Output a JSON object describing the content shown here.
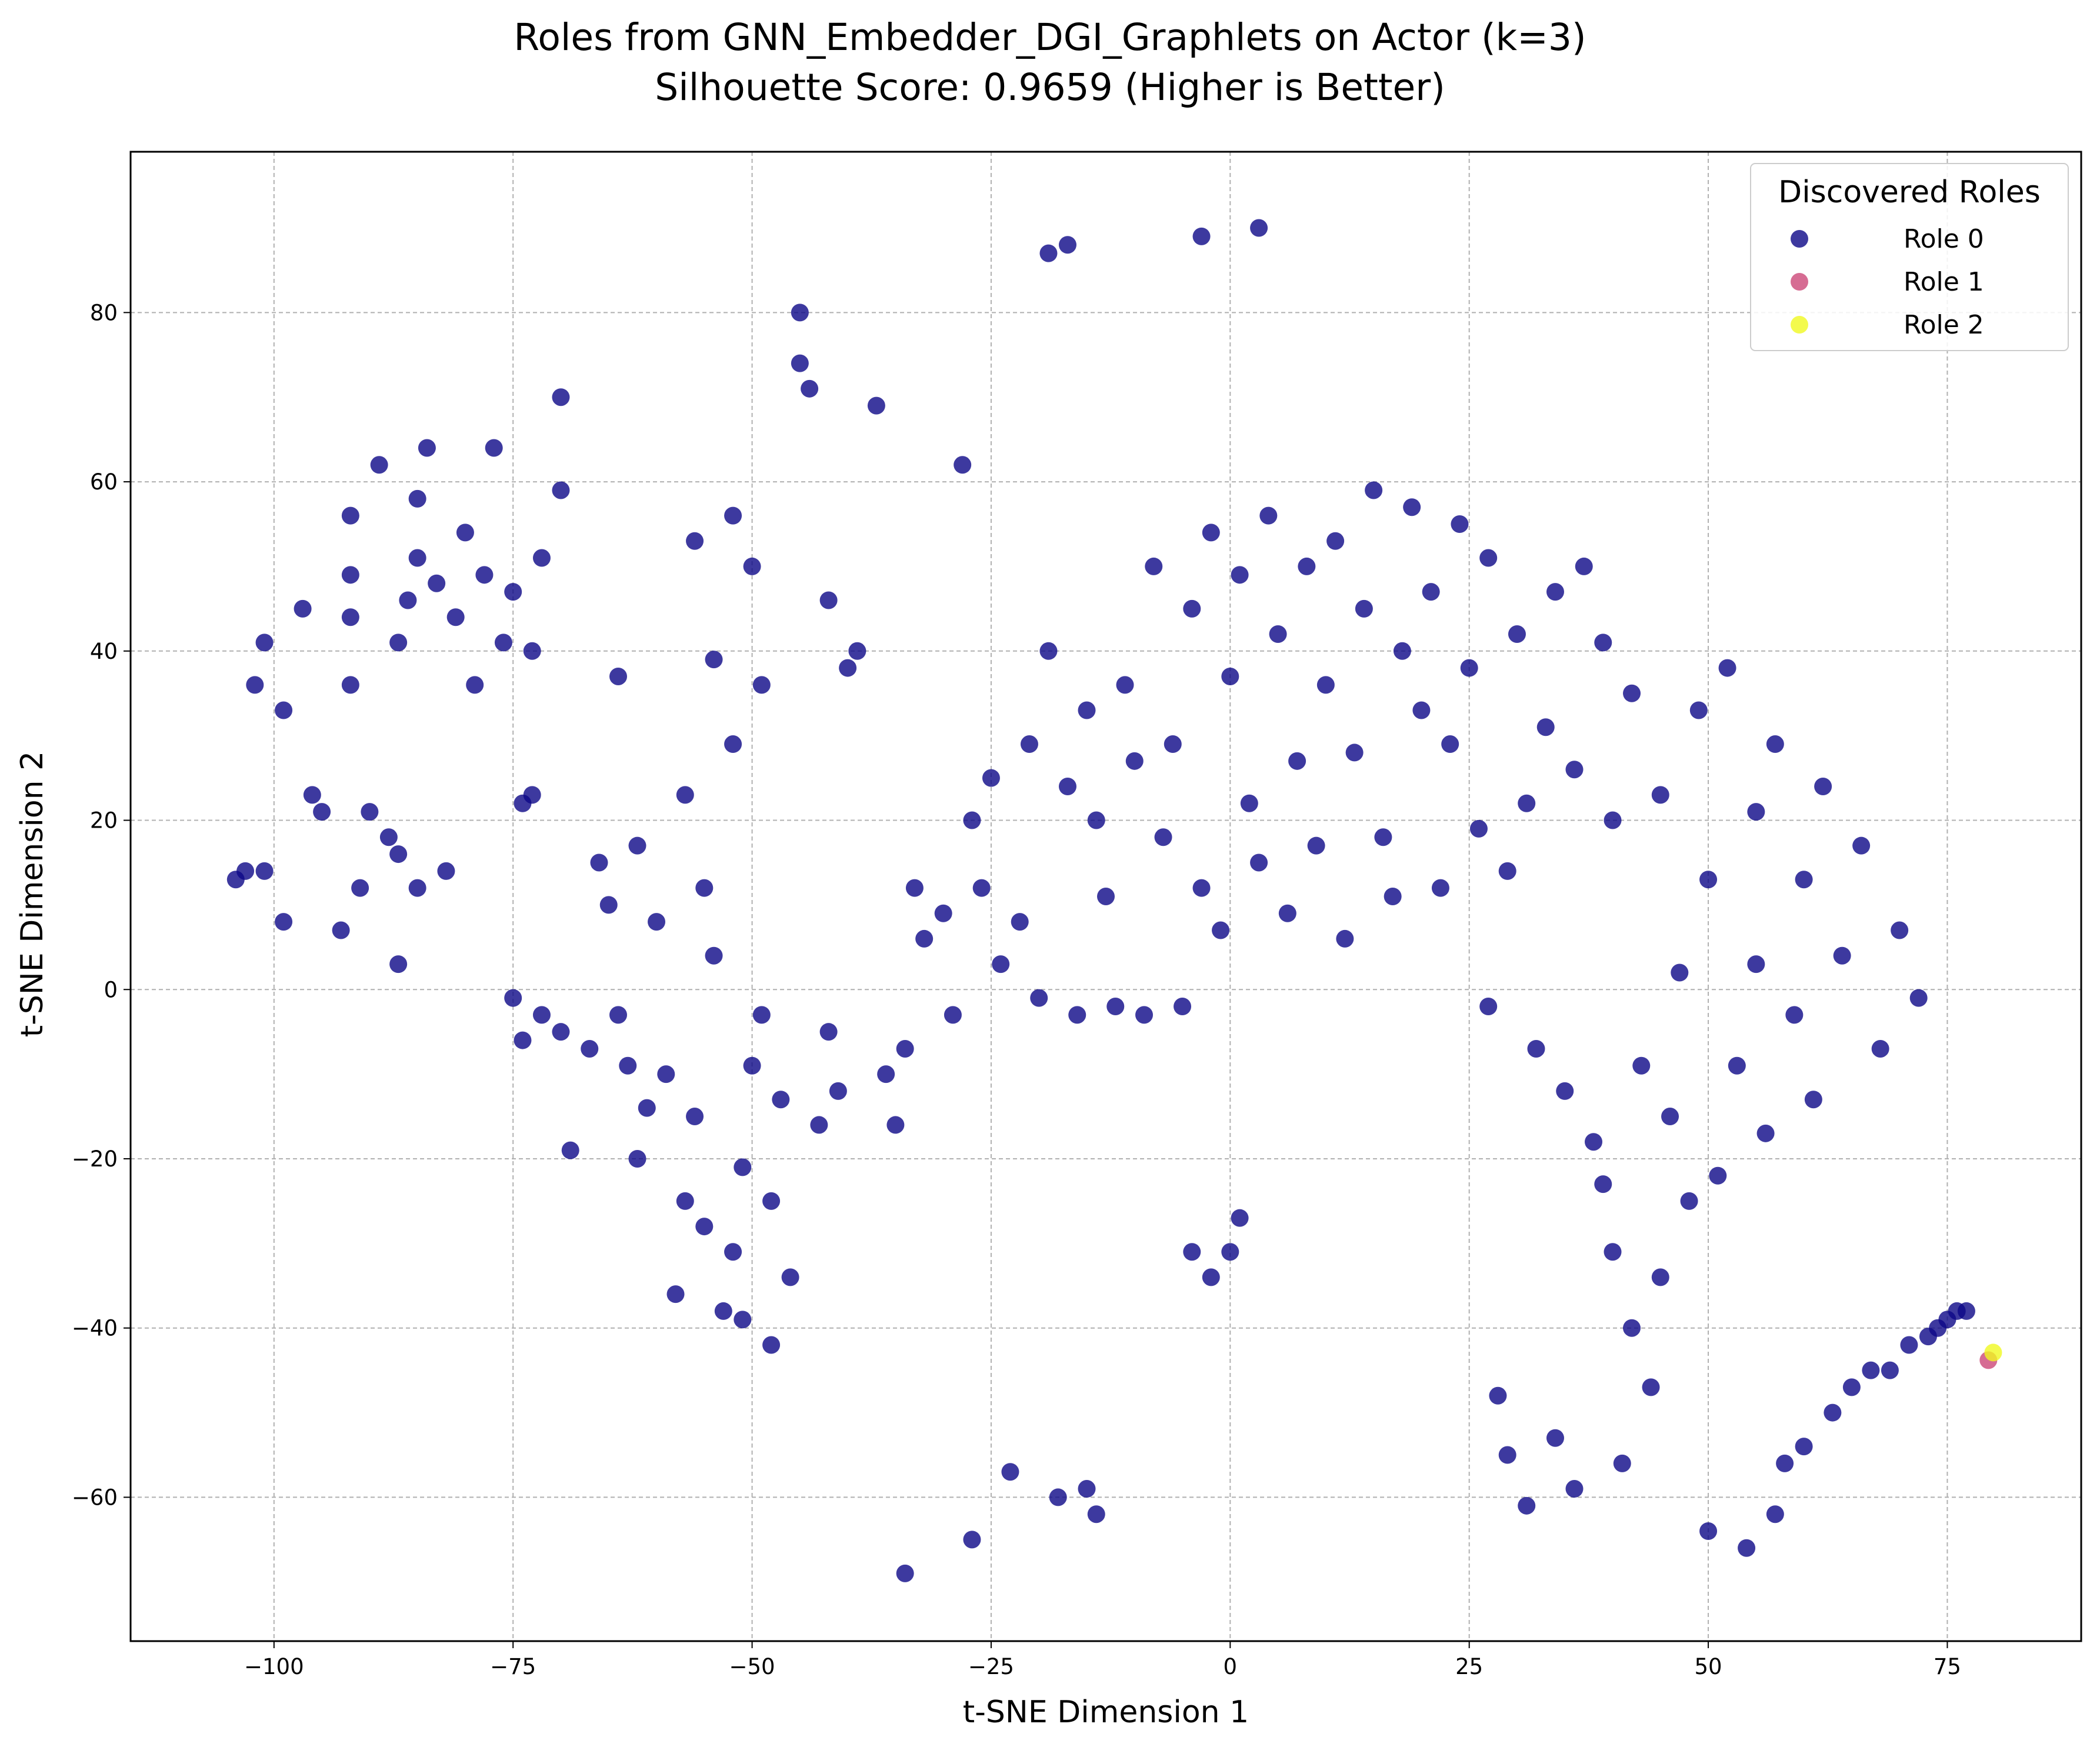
{
  "chart_data": {
    "type": "scatter",
    "title": "Roles from GNN_Embedder_DGI_Graphlets on Actor (k=3)",
    "subtitle": "Silhouette Score: 0.9659 (Higher is Better)",
    "xlabel": "t-SNE Dimension 1",
    "ylabel": "t-SNE Dimension 2",
    "xlim": [
      -115,
      89
    ],
    "ylim": [
      -77,
      99
    ],
    "xticks": [
      -100,
      -75,
      -50,
      -25,
      0,
      25,
      50,
      75
    ],
    "yticks": [
      -60,
      -40,
      -20,
      0,
      20,
      40,
      60,
      80
    ],
    "xtick_labels": [
      "−100",
      "−75",
      "−50",
      "−25",
      "0",
      "25",
      "50",
      "75"
    ],
    "ytick_labels": [
      "−60",
      "−40",
      "−20",
      "0",
      "20",
      "40",
      "60",
      "80"
    ],
    "grid": true,
    "legend": {
      "title": "Discovered Roles",
      "position": "top-right",
      "entries": [
        "Role 0",
        "Role 1",
        "Role 2"
      ]
    },
    "series": [
      {
        "name": "Role 0",
        "color": "#0d0887",
        "points": [
          [
            -104,
            13
          ],
          [
            -103,
            14
          ],
          [
            -101,
            14
          ],
          [
            -102,
            36
          ],
          [
            -101,
            41
          ],
          [
            -99,
            33
          ],
          [
            -99,
            8
          ],
          [
            -97,
            45
          ],
          [
            -96,
            23
          ],
          [
            -95,
            21
          ],
          [
            -93,
            7
          ],
          [
            -92,
            36
          ],
          [
            -92,
            44
          ],
          [
            -92,
            49
          ],
          [
            -92,
            56
          ],
          [
            -91,
            12
          ],
          [
            -90,
            21
          ],
          [
            -89,
            62
          ],
          [
            -88,
            18
          ],
          [
            -87,
            16
          ],
          [
            -87,
            3
          ],
          [
            -87,
            41
          ],
          [
            -86,
            46
          ],
          [
            -85,
            12
          ],
          [
            -85,
            51
          ],
          [
            -85,
            58
          ],
          [
            -84,
            64
          ],
          [
            -83,
            48
          ],
          [
            -82,
            14
          ],
          [
            -81,
            44
          ],
          [
            -80,
            54
          ],
          [
            -79,
            36
          ],
          [
            -78,
            49
          ],
          [
            -77,
            64
          ],
          [
            -76,
            41
          ],
          [
            -75,
            47
          ],
          [
            -75,
            -1
          ],
          [
            -74,
            22
          ],
          [
            -74,
            -6
          ],
          [
            -73,
            40
          ],
          [
            -73,
            23
          ],
          [
            -72,
            51
          ],
          [
            -72,
            -3
          ],
          [
            -70,
            59
          ],
          [
            -70,
            70
          ],
          [
            -70,
            -5
          ],
          [
            -69,
            -19
          ],
          [
            -67,
            -7
          ],
          [
            -66,
            15
          ],
          [
            -65,
            10
          ],
          [
            -64,
            37
          ],
          [
            -64,
            -3
          ],
          [
            -63,
            -9
          ],
          [
            -62,
            17
          ],
          [
            -62,
            -20
          ],
          [
            -61,
            -14
          ],
          [
            -60,
            8
          ],
          [
            -59,
            -10
          ],
          [
            -58,
            -36
          ],
          [
            -57,
            23
          ],
          [
            -57,
            -25
          ],
          [
            -56,
            53
          ],
          [
            -56,
            -15
          ],
          [
            -55,
            12
          ],
          [
            -55,
            -28
          ],
          [
            -54,
            4
          ],
          [
            -54,
            39
          ],
          [
            -53,
            -38
          ],
          [
            -52,
            -31
          ],
          [
            -52,
            56
          ],
          [
            -52,
            29
          ],
          [
            -51,
            -21
          ],
          [
            -51,
            -39
          ],
          [
            -50,
            50
          ],
          [
            -50,
            -9
          ],
          [
            -49,
            36
          ],
          [
            -49,
            -3
          ],
          [
            -48,
            -42
          ],
          [
            -48,
            -25
          ],
          [
            -47,
            -13
          ],
          [
            -46,
            -34
          ],
          [
            -45,
            74
          ],
          [
            -45,
            80
          ],
          [
            -44,
            71
          ],
          [
            -43,
            -16
          ],
          [
            -42,
            46
          ],
          [
            -42,
            -5
          ],
          [
            -41,
            -12
          ],
          [
            -40,
            38
          ],
          [
            -39,
            40
          ],
          [
            -37,
            69
          ],
          [
            -36,
            -10
          ],
          [
            -35,
            -16
          ],
          [
            -34,
            -69
          ],
          [
            -34,
            -7
          ],
          [
            -33,
            12
          ],
          [
            -32,
            6
          ],
          [
            -30,
            9
          ],
          [
            -29,
            -3
          ],
          [
            -28,
            62
          ],
          [
            -27,
            -65
          ],
          [
            -27,
            20
          ],
          [
            -26,
            12
          ],
          [
            -25,
            25
          ],
          [
            -24,
            3
          ],
          [
            -23,
            -57
          ],
          [
            -22,
            8
          ],
          [
            -21,
            29
          ],
          [
            -20,
            -1
          ],
          [
            -19,
            40
          ],
          [
            -19,
            87
          ],
          [
            -18,
            -60
          ],
          [
            -17,
            24
          ],
          [
            -17,
            88
          ],
          [
            -16,
            -3
          ],
          [
            -15,
            -59
          ],
          [
            -15,
            33
          ],
          [
            -14,
            -62
          ],
          [
            -14,
            20
          ],
          [
            -13,
            11
          ],
          [
            -12,
            -2
          ],
          [
            -11,
            36
          ],
          [
            -10,
            27
          ],
          [
            -9,
            -3
          ],
          [
            -8,
            50
          ],
          [
            -7,
            18
          ],
          [
            -6,
            29
          ],
          [
            -5,
            -2
          ],
          [
            -4,
            45
          ],
          [
            -4,
            -31
          ],
          [
            -3,
            12
          ],
          [
            -3,
            89
          ],
          [
            -2,
            54
          ],
          [
            -2,
            -34
          ],
          [
            -1,
            7
          ],
          [
            0,
            37
          ],
          [
            0,
            -31
          ],
          [
            1,
            -27
          ],
          [
            1,
            49
          ],
          [
            2,
            22
          ],
          [
            3,
            90
          ],
          [
            3,
            15
          ],
          [
            4,
            56
          ],
          [
            5,
            42
          ],
          [
            6,
            9
          ],
          [
            7,
            27
          ],
          [
            8,
            50
          ],
          [
            9,
            17
          ],
          [
            10,
            36
          ],
          [
            11,
            53
          ],
          [
            12,
            6
          ],
          [
            13,
            28
          ],
          [
            14,
            45
          ],
          [
            15,
            59
          ],
          [
            16,
            18
          ],
          [
            17,
            11
          ],
          [
            18,
            40
          ],
          [
            19,
            57
          ],
          [
            20,
            33
          ],
          [
            21,
            47
          ],
          [
            22,
            12
          ],
          [
            23,
            29
          ],
          [
            24,
            55
          ],
          [
            25,
            38
          ],
          [
            26,
            19
          ],
          [
            27,
            -2
          ],
          [
            27,
            51
          ],
          [
            28,
            -48
          ],
          [
            29,
            14
          ],
          [
            29,
            -55
          ],
          [
            30,
            42
          ],
          [
            31,
            -61
          ],
          [
            31,
            22
          ],
          [
            32,
            -7
          ],
          [
            33,
            31
          ],
          [
            34,
            47
          ],
          [
            34,
            -53
          ],
          [
            35,
            -12
          ],
          [
            36,
            26
          ],
          [
            36,
            -59
          ],
          [
            37,
            50
          ],
          [
            38,
            -18
          ],
          [
            39,
            41
          ],
          [
            39,
            -23
          ],
          [
            40,
            -31
          ],
          [
            40,
            20
          ],
          [
            41,
            -56
          ],
          [
            42,
            -40
          ],
          [
            42,
            35
          ],
          [
            43,
            -9
          ],
          [
            44,
            -47
          ],
          [
            45,
            -34
          ],
          [
            45,
            23
          ],
          [
            46,
            -15
          ],
          [
            47,
            2
          ],
          [
            48,
            -25
          ],
          [
            49,
            33
          ],
          [
            50,
            -64
          ],
          [
            50,
            13
          ],
          [
            51,
            -22
          ],
          [
            52,
            38
          ],
          [
            53,
            -9
          ],
          [
            54,
            -66
          ],
          [
            55,
            21
          ],
          [
            55,
            3
          ],
          [
            56,
            -17
          ],
          [
            57,
            -62
          ],
          [
            57,
            29
          ],
          [
            58,
            -56
          ],
          [
            59,
            -3
          ],
          [
            60,
            -54
          ],
          [
            60,
            13
          ],
          [
            61,
            -13
          ],
          [
            62,
            24
          ],
          [
            63,
            -50
          ],
          [
            64,
            4
          ],
          [
            65,
            -47
          ],
          [
            66,
            17
          ],
          [
            67,
            -45
          ],
          [
            68,
            -7
          ],
          [
            69,
            -45
          ],
          [
            70,
            7
          ],
          [
            71,
            -42
          ],
          [
            72,
            -1
          ],
          [
            73,
            -41
          ],
          [
            74,
            -40
          ],
          [
            75,
            -39
          ],
          [
            76,
            -38
          ],
          [
            77,
            -38
          ]
        ]
      },
      {
        "name": "Role 1",
        "color": "#cc4778",
        "points": [
          [
            79.3,
            -43.8
          ]
        ]
      },
      {
        "name": "Role 2",
        "color": "#f0f921",
        "points": [
          [
            79.8,
            -42.9
          ]
        ]
      }
    ]
  }
}
